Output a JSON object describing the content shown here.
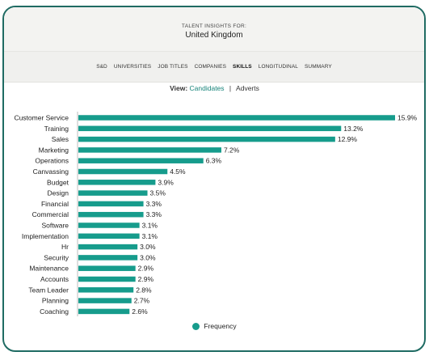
{
  "header": {
    "kicker": "TALENT INSIGHTS FOR:",
    "country": "United Kingdom"
  },
  "nav": {
    "tabs": [
      {
        "label": "S&D",
        "active": false
      },
      {
        "label": "UNIVERSITIES",
        "active": false
      },
      {
        "label": "JOB TITLES",
        "active": false
      },
      {
        "label": "COMPANIES",
        "active": false
      },
      {
        "label": "SKILLS",
        "active": true
      },
      {
        "label": "LONGITUDINAL",
        "active": false
      },
      {
        "label": "SUMMARY",
        "active": false
      }
    ]
  },
  "view": {
    "label": "View:",
    "selected": "Candidates",
    "separator": "|",
    "other": "Adverts"
  },
  "legend": {
    "label": "Frequency"
  },
  "colors": {
    "bar": "#169c8c",
    "frame": "#1f6b63",
    "accent_text": "#17847a"
  },
  "chart_data": {
    "type": "bar",
    "orientation": "horizontal",
    "categories": [
      "Customer Service",
      "Training",
      "Sales",
      "Marketing",
      "Operations",
      "Canvassing",
      "Budget",
      "Design",
      "Financial",
      "Commercial",
      "Software",
      "Implementation",
      "Hr",
      "Security",
      "Maintenance",
      "Accounts",
      "Team Leader",
      "Planning",
      "Coaching"
    ],
    "series": [
      {
        "name": "Frequency",
        "values": [
          15.9,
          13.2,
          12.9,
          7.2,
          6.3,
          4.5,
          3.9,
          3.5,
          3.3,
          3.3,
          3.1,
          3.1,
          3.0,
          3.0,
          2.9,
          2.9,
          2.8,
          2.7,
          2.6
        ]
      }
    ],
    "labels": [
      "15.9%",
      "13.2%",
      "12.9%",
      "7.2%",
      "6.3%",
      "4.5%",
      "3.9%",
      "3.5%",
      "3.3%",
      "3.3%",
      "3.1%",
      "3.1%",
      "3.0%",
      "3.0%",
      "2.9%",
      "2.9%",
      "2.8%",
      "2.7%",
      "2.6%"
    ],
    "xlim": [
      0,
      15.9
    ],
    "legend": "bottom",
    "grid": false
  }
}
